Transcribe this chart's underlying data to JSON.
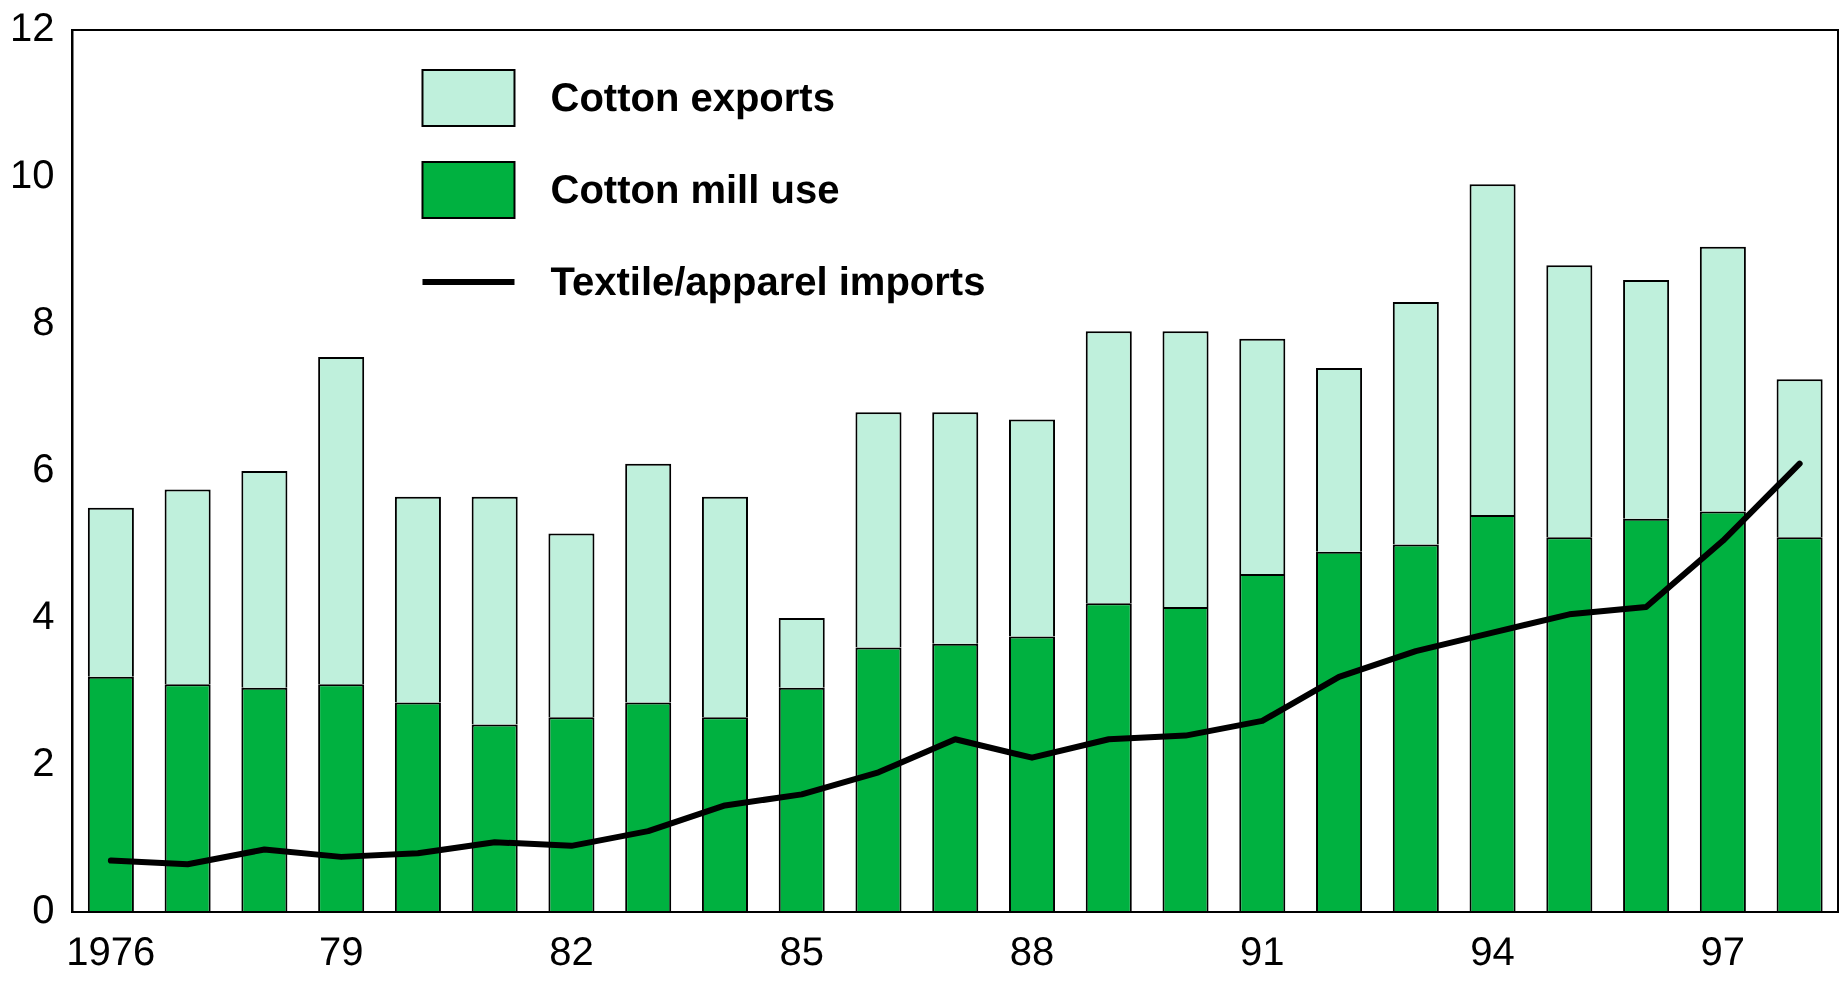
{
  "chart_data": {
    "type": "bar",
    "stacked": true,
    "categories": [
      "1976",
      null,
      null,
      "79",
      null,
      null,
      "82",
      null,
      null,
      "85",
      null,
      null,
      "88",
      null,
      null,
      "91",
      null,
      null,
      "94",
      null,
      null,
      "97",
      null
    ],
    "series": [
      {
        "name": "Cotton mill use",
        "color": "#00b140",
        "values": [
          3.2,
          3.1,
          3.05,
          3.1,
          2.85,
          2.55,
          2.65,
          2.85,
          2.65,
          3.05,
          3.6,
          3.65,
          3.75,
          4.2,
          4.15,
          4.6,
          4.9,
          5.0,
          5.4,
          5.1,
          5.35,
          5.45,
          5.1
        ]
      },
      {
        "name": "Cotton exports",
        "color": "#bff0dc",
        "values": [
          2.3,
          2.65,
          2.95,
          4.45,
          2.8,
          3.1,
          2.5,
          3.25,
          3.0,
          0.95,
          3.2,
          3.15,
          2.95,
          3.7,
          3.75,
          3.2,
          2.5,
          3.3,
          4.5,
          3.7,
          3.25,
          3.6,
          2.15
        ]
      },
      {
        "name": "Textile/apparel imports",
        "type": "line",
        "color": "#000000",
        "values": [
          0.7,
          0.65,
          0.85,
          0.75,
          0.8,
          0.95,
          0.9,
          1.1,
          1.45,
          1.6,
          1.9,
          2.35,
          2.1,
          2.35,
          2.4,
          2.6,
          3.2,
          3.55,
          3.8,
          4.05,
          4.15,
          5.05,
          6.1
        ]
      }
    ],
    "ylim": [
      0,
      12
    ],
    "yticks": [
      0,
      2,
      4,
      6,
      8,
      10,
      12
    ],
    "legend": "top left",
    "marker": "none"
  }
}
